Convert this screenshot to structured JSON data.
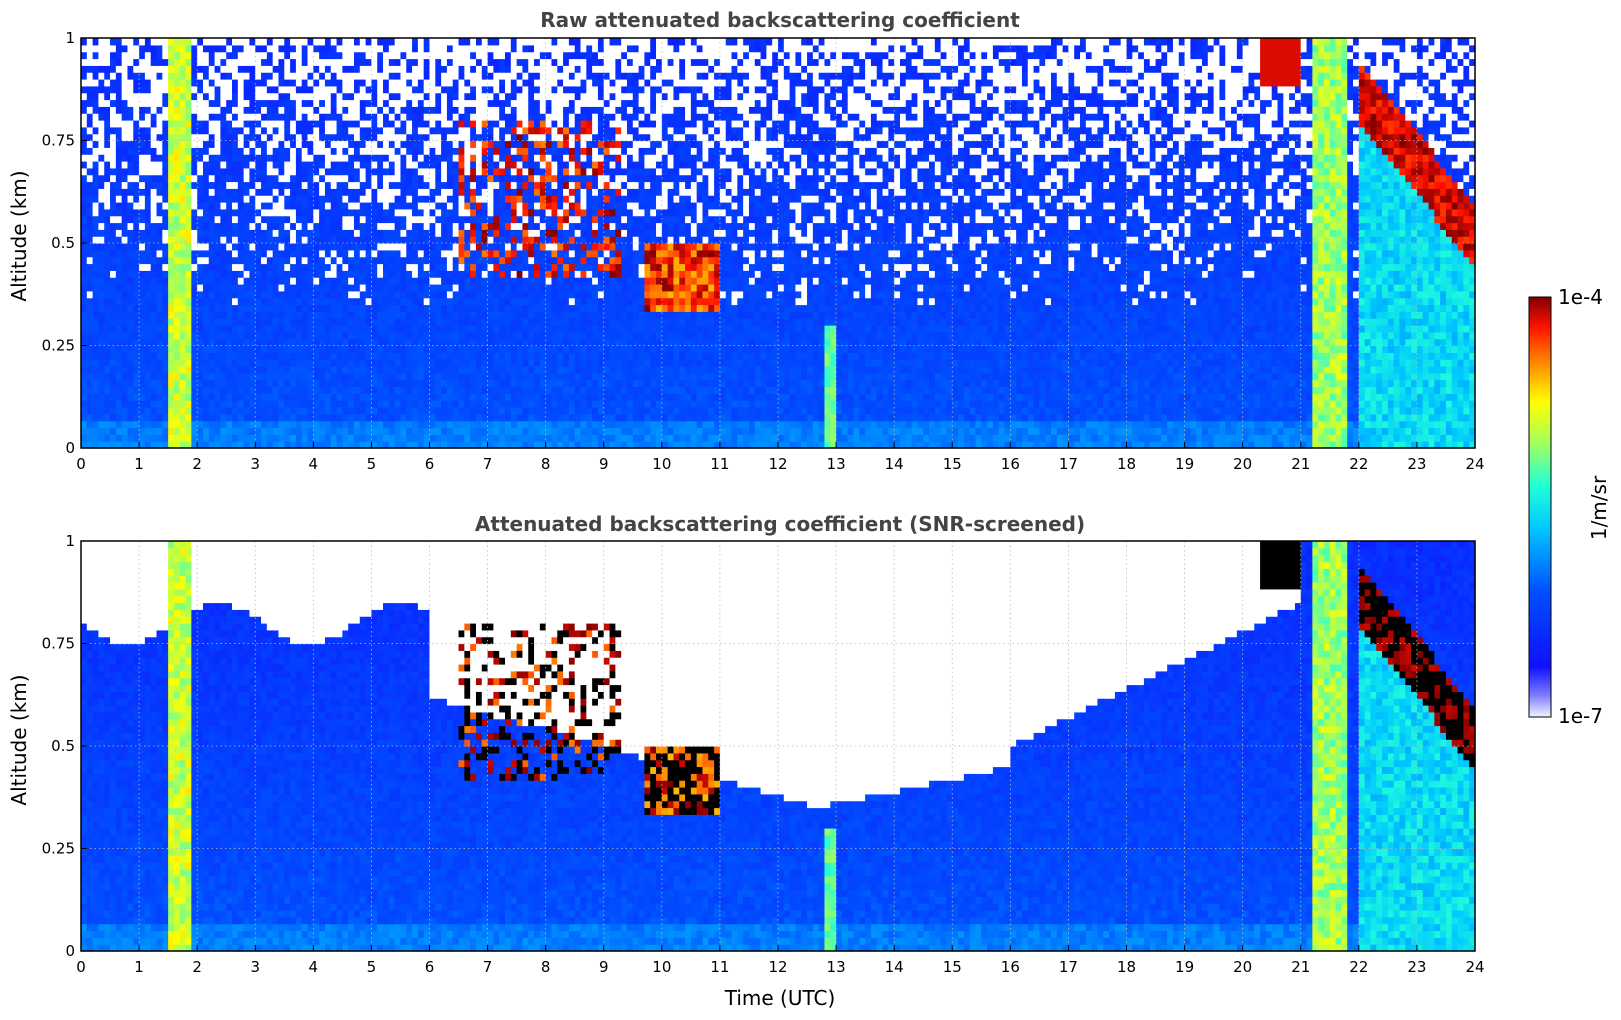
{
  "colors": {
    "title": "#444444",
    "grid": "#bbbbbb"
  },
  "chart_data": [
    {
      "type": "heatmap",
      "title": "Raw attenuated backscattering coefficient",
      "xlabel": "",
      "ylabel": "Altitude (km)",
      "xlim": [
        0,
        24
      ],
      "ylim": [
        0,
        1
      ],
      "x_ticks": [
        "0",
        "1",
        "2",
        "3",
        "4",
        "5",
        "6",
        "7",
        "8",
        "9",
        "10",
        "11",
        "12",
        "13",
        "14",
        "15",
        "16",
        "17",
        "18",
        "19",
        "20",
        "21",
        "22",
        "23",
        "24"
      ],
      "y_ticks": [
        "0",
        "0.25",
        "0.5",
        "0.75",
        "1"
      ],
      "grid": true,
      "screened": false
    },
    {
      "type": "heatmap",
      "title": "Attenuated backscattering coefficient (SNR-screened)",
      "xlabel": "Time (UTC)",
      "ylabel": "Altitude (km)",
      "xlim": [
        0,
        24
      ],
      "ylim": [
        0,
        1
      ],
      "x_ticks": [
        "0",
        "1",
        "2",
        "3",
        "4",
        "5",
        "6",
        "7",
        "8",
        "9",
        "10",
        "11",
        "12",
        "13",
        "14",
        "15",
        "16",
        "17",
        "18",
        "19",
        "20",
        "21",
        "22",
        "23",
        "24"
      ],
      "y_ticks": [
        "0",
        "0.25",
        "0.5",
        "0.75",
        "1"
      ],
      "grid": true,
      "screened": true
    }
  ],
  "colorbar": {
    "label": "1/m/sr",
    "max_label": "1e-4",
    "min_label": "1e-7",
    "scale": "log",
    "colormap": "jet"
  }
}
